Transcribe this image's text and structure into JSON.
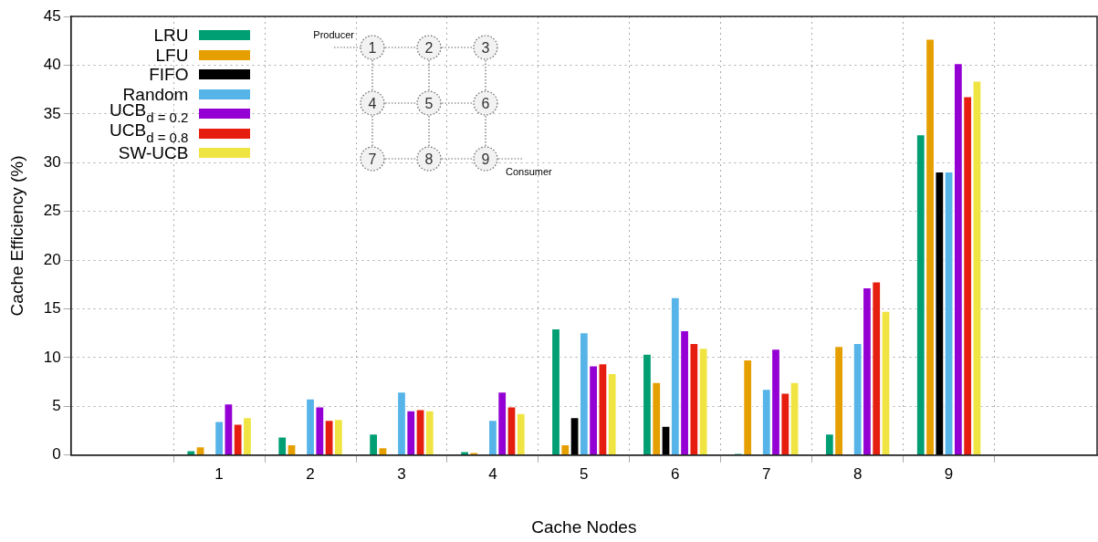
{
  "chart_data": {
    "type": "bar",
    "xlabel": "Cache Nodes",
    "ylabel": "Cache Efficiency (%)",
    "categories": [
      "1",
      "2",
      "3",
      "4",
      "5",
      "6",
      "7",
      "8",
      "9"
    ],
    "series": [
      {
        "name": "LRU",
        "color": "#009e73",
        "values": [
          0.5,
          1.9,
          2.2,
          0.4,
          13.0,
          10.4,
          0.2,
          2.2,
          32.9
        ]
      },
      {
        "name": "LFU",
        "color": "#e69f00",
        "values": [
          0.9,
          1.1,
          0.8,
          0.3,
          1.1,
          7.5,
          9.8,
          11.2,
          42.7
        ]
      },
      {
        "name": "FIFO",
        "color": "#000000",
        "values": [
          0,
          0,
          0,
          0,
          3.9,
          3.0,
          0,
          0,
          29.1
        ]
      },
      {
        "name": "Random",
        "color": "#56b4e9",
        "values": [
          3.5,
          5.8,
          6.5,
          3.6,
          12.6,
          16.2,
          6.8,
          11.5,
          29.1
        ]
      },
      {
        "name": "UCB$_{d = 0.2}$",
        "color": "#9400d3",
        "values": [
          5.3,
          5.0,
          4.6,
          6.5,
          9.2,
          12.8,
          10.9,
          17.2,
          40.2
        ]
      },
      {
        "name": "UCB$_{d = 0.8}$",
        "color": "#e51e10",
        "values": [
          3.2,
          3.6,
          4.7,
          5.0,
          9.4,
          11.5,
          6.4,
          17.8,
          36.8
        ]
      },
      {
        "name": "SW-UCB",
        "color": "#f0e442",
        "values": [
          3.9,
          3.7,
          4.6,
          4.3,
          8.4,
          11.0,
          7.5,
          14.8,
          38.4
        ]
      }
    ],
    "ylim": [
      0,
      45
    ],
    "yticks": [
      0,
      5,
      10,
      15,
      20,
      25,
      30,
      35,
      40,
      45
    ],
    "grid": true,
    "legend": "top left",
    "annotations": [
      "Producer",
      "Consumer",
      "1",
      "2",
      "3",
      "4",
      "5",
      "6",
      "7",
      "8",
      "9"
    ]
  }
}
